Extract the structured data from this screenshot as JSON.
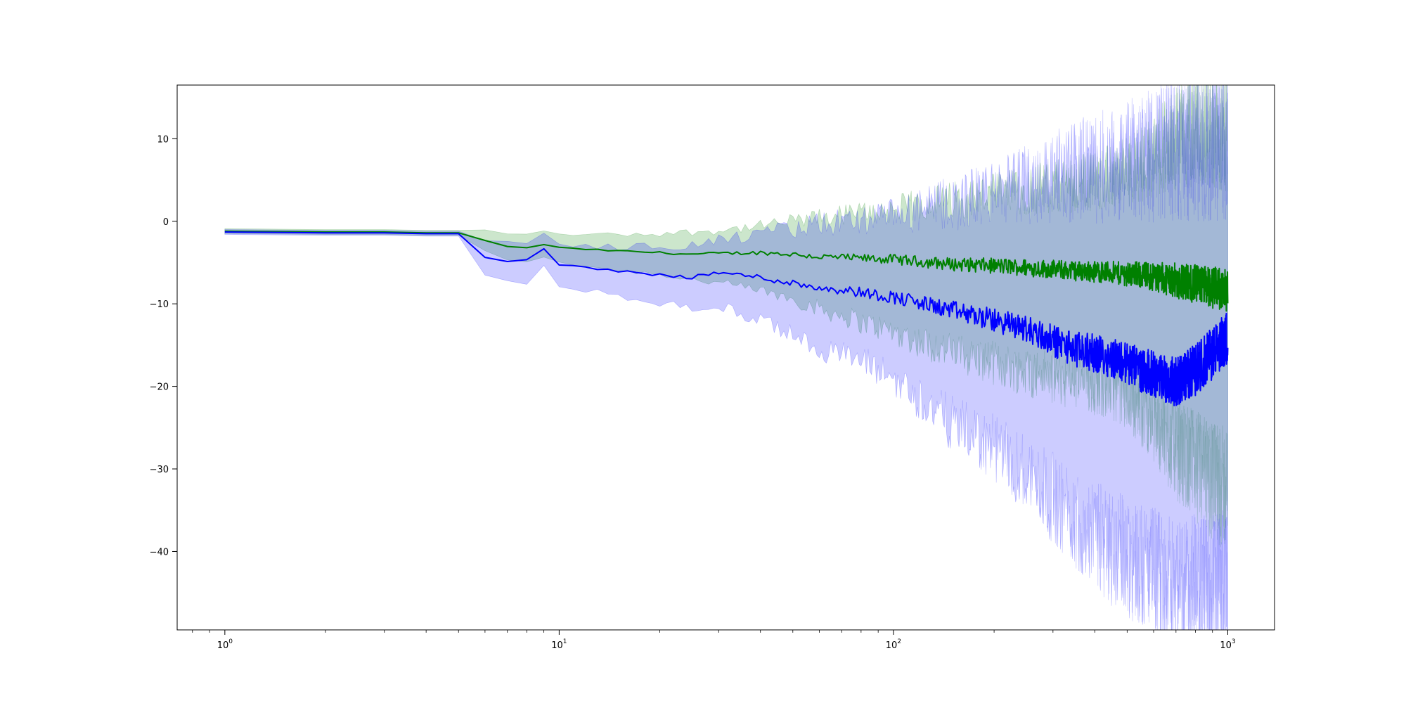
{
  "chart_data": {
    "type": "line",
    "title": "",
    "xlabel": "",
    "ylabel": "",
    "xscale": "log",
    "xlim": [
      0.72,
      1380
    ],
    "ylim": [
      -49.5,
      16.5
    ],
    "grid": false,
    "legend": "none",
    "x_ticks": [
      {
        "value": 1,
        "base": "10",
        "exp": "0"
      },
      {
        "value": 10,
        "base": "10",
        "exp": "1"
      },
      {
        "value": 100,
        "base": "10",
        "exp": "2"
      },
      {
        "value": 1000,
        "base": "10",
        "exp": "3"
      }
    ],
    "y_ticks": [
      {
        "value": 10,
        "label": "10"
      },
      {
        "value": 0,
        "label": "0"
      },
      {
        "value": -10,
        "label": "−10"
      },
      {
        "value": -20,
        "label": "−20"
      },
      {
        "value": -30,
        "label": "−30"
      },
      {
        "value": -40,
        "label": "−40"
      }
    ],
    "series": [
      {
        "color": "#008000",
        "band_color": "#008000",
        "band_opacity": 0.2,
        "x": [
          1,
          2,
          3,
          4,
          5,
          6,
          7,
          8,
          9,
          10,
          12,
          15,
          20,
          25,
          30,
          40,
          50,
          60,
          70,
          80,
          100,
          120,
          150,
          200,
          250,
          300,
          350,
          400,
          450,
          500,
          550,
          600,
          650,
          700,
          800,
          900,
          1000
        ],
        "y": [
          -1.2,
          -1.3,
          -1.3,
          -1.4,
          -1.4,
          -2.3,
          -3.1,
          -3.2,
          -2.8,
          -3.2,
          -3.4,
          -3.6,
          -3.8,
          -4.0,
          -3.9,
          -3.8,
          -4.0,
          -4.3,
          -4.4,
          -4.5,
          -4.6,
          -4.9,
          -5.2,
          -5.4,
          -5.6,
          -5.8,
          -6.0,
          -6.1,
          -6.2,
          -6.4,
          -6.5,
          -6.7,
          -6.9,
          -7.2,
          -7.6,
          -8.0,
          -8.4
        ],
        "lower": [
          -1.5,
          -1.6,
          -1.6,
          -1.7,
          -1.7,
          -3.5,
          -4.8,
          -5.0,
          -4.3,
          -4.9,
          -5.4,
          -5.9,
          -6.4,
          -7.0,
          -7.5,
          -8.4,
          -9.4,
          -10.6,
          -11.4,
          -12.2,
          -13.4,
          -14.6,
          -15.8,
          -17.2,
          -18.2,
          -18.8,
          -19.4,
          -19.8,
          -20.1,
          -21.0,
          -22.5,
          -24.0,
          -26.0,
          -27.5,
          -29.5,
          -31.5,
          -32.5
        ],
        "upper": [
          -0.9,
          -1.0,
          -1.0,
          -1.1,
          -1.1,
          -1.1,
          -1.4,
          -1.5,
          -1.3,
          -1.5,
          -1.6,
          -1.6,
          -1.5,
          -1.3,
          -1.1,
          -0.6,
          0.0,
          0.4,
          0.8,
          1.0,
          1.4,
          2.0,
          2.6,
          3.2,
          3.8,
          4.2,
          4.6,
          5.0,
          5.4,
          6.0,
          7.0,
          8.0,
          9.0,
          10.0,
          11.0,
          11.5,
          11.0
        ]
      },
      {
        "color": "#0000ff",
        "band_color": "#0000ff",
        "band_opacity": 0.2,
        "x": [
          1,
          2,
          3,
          4,
          5,
          6,
          7,
          8,
          9,
          10,
          12,
          15,
          20,
          25,
          30,
          40,
          50,
          60,
          70,
          80,
          100,
          120,
          150,
          200,
          250,
          300,
          350,
          400,
          450,
          500,
          550,
          600,
          650,
          700,
          800,
          900,
          1000
        ],
        "y": [
          -1.3,
          -1.4,
          -1.4,
          -1.5,
          -1.5,
          -4.4,
          -4.8,
          -4.7,
          -3.4,
          -5.3,
          -5.6,
          -6.0,
          -6.5,
          -6.8,
          -6.2,
          -6.8,
          -7.5,
          -8.0,
          -8.3,
          -8.6,
          -9.2,
          -9.9,
          -10.8,
          -12.0,
          -13.0,
          -14.5,
          -15.5,
          -16.0,
          -16.5,
          -17.2,
          -18.0,
          -18.5,
          -19.0,
          -19.5,
          -18.0,
          -16.0,
          -14.0
        ],
        "lower": [
          -1.6,
          -1.7,
          -1.7,
          -1.8,
          -1.8,
          -6.6,
          -7.4,
          -7.5,
          -5.5,
          -7.8,
          -8.3,
          -9.0,
          -9.9,
          -10.5,
          -10.3,
          -12.0,
          -13.8,
          -15.3,
          -16.2,
          -17.0,
          -19.0,
          -21.5,
          -24.5,
          -27.5,
          -30.5,
          -33.5,
          -36.0,
          -38.0,
          -39.5,
          -40.5,
          -41.5,
          -42.5,
          -43.5,
          -44.0,
          -44.5,
          -44.5,
          -44.0
        ],
        "upper": [
          -1.0,
          -1.1,
          -1.1,
          -1.2,
          -1.2,
          -2.2,
          -2.6,
          -2.5,
          -1.5,
          -2.9,
          -3.0,
          -3.1,
          -3.0,
          -2.9,
          -2.3,
          -1.6,
          -0.9,
          -0.4,
          -0.1,
          0.1,
          0.5,
          1.2,
          2.2,
          3.5,
          4.5,
          5.4,
          6.0,
          6.4,
          6.8,
          7.2,
          7.6,
          8.0,
          8.4,
          8.8,
          9.0,
          9.2,
          9.4
        ]
      }
    ]
  }
}
